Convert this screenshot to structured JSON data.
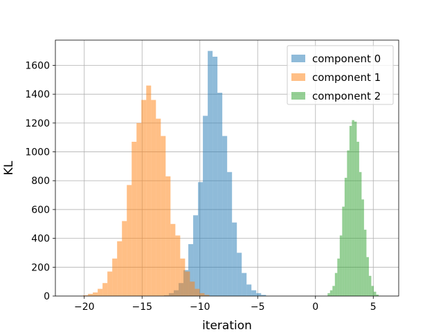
{
  "chart_data": {
    "type": "bar",
    "subtype": "histogram",
    "title": "",
    "xlabel": "iteration",
    "ylabel": "KL",
    "xlim": [
      -22.5,
      7.2
    ],
    "ylim": [
      0,
      1775
    ],
    "xticks": [
      -20,
      -15,
      -10,
      -5,
      0,
      5
    ],
    "xtick_labels": [
      "−20",
      "−15",
      "−10",
      "−5",
      "0",
      "5"
    ],
    "yticks": [
      0,
      200,
      400,
      600,
      800,
      1000,
      1200,
      1400,
      1600
    ],
    "ytick_labels": [
      "0",
      "200",
      "400",
      "600",
      "800",
      "1000",
      "1200",
      "1400",
      "1600"
    ],
    "grid": true,
    "legend_position": "top-right",
    "bin_alpha": 0.5,
    "series": [
      {
        "name": "component 0",
        "color": "#1f77b4",
        "bin_start": -13.1,
        "bin_width": 0.42,
        "counts": [
          5,
          20,
          40,
          90,
          180,
          360,
          560,
          790,
          1250,
          1700,
          1660,
          1410,
          1110,
          860,
          510,
          300,
          160,
          80,
          40,
          20,
          8
        ]
      },
      {
        "name": "component 1",
        "color": "#ff7f0e",
        "bin_start": -20.1,
        "bin_width": 0.42,
        "counts": [
          5,
          15,
          25,
          50,
          90,
          170,
          260,
          380,
          520,
          770,
          1070,
          1200,
          1360,
          1460,
          1360,
          1230,
          1110,
          830,
          500,
          420,
          260,
          170,
          100,
          50,
          20,
          8
        ]
      },
      {
        "name": "component 2",
        "color": "#2ca02c",
        "bin_start": 1.05,
        "bin_width": 0.21,
        "counts": [
          20,
          40,
          70,
          160,
          260,
          420,
          620,
          820,
          1010,
          1180,
          1220,
          1210,
          1070,
          860,
          670,
          460,
          270,
          140,
          70,
          30,
          10
        ]
      }
    ]
  }
}
